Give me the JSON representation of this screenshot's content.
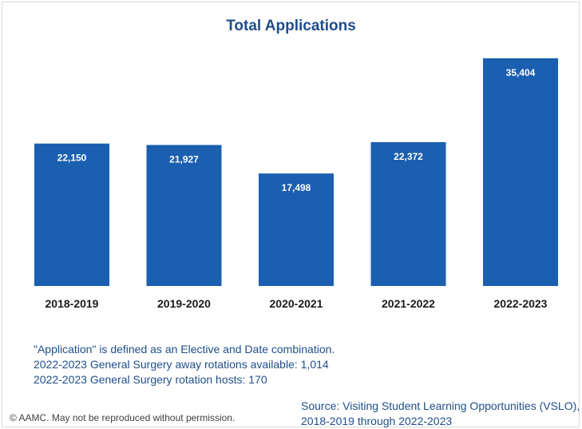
{
  "chart_data": {
    "type": "bar",
    "title": "Total Applications",
    "categories": [
      "2018-2019",
      "2019-2020",
      "2020-2021",
      "2021-2022",
      "2022-2023"
    ],
    "values": [
      22150,
      21927,
      17498,
      22372,
      35404
    ],
    "value_labels": [
      "22,150",
      "21,927",
      "17,498",
      "22,372",
      "35,404"
    ],
    "xlabel": "",
    "ylabel": "",
    "ylim": [
      0,
      35404
    ],
    "grid": false,
    "bar_color": "#1a5fb0"
  },
  "notes": [
    "\"Application\" is defined as an Elective and Date combination.",
    "2022-2023 General Surgery away rotations available: 1,014",
    "2022-2023 General Surgery rotation hosts: 170"
  ],
  "source": [
    "Source: Visiting Student Learning Opportunities (VSLO),",
    "2018-2019 through 2022-2023"
  ],
  "copyright": "© AAMC. May not be reproduced without permission."
}
